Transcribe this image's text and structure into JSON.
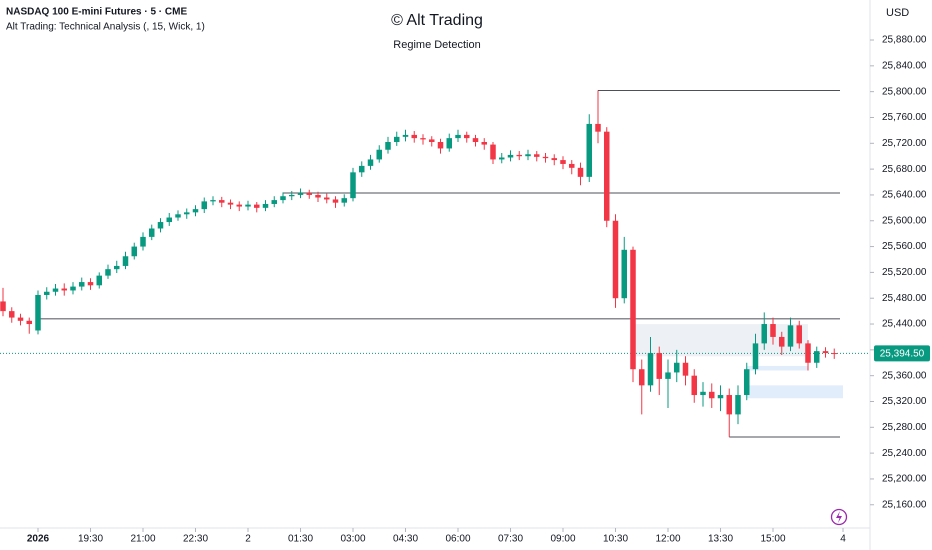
{
  "chart_data": {
    "type": "candlestick",
    "symbol_title": "NASDAQ 100 E-mini Futures · 5 · CME",
    "indicator_title": "Alt Trading: Technical Analysis (, 15, Wick, 1)",
    "title": "© Alt Trading",
    "subtitle": "Regime Detection",
    "currency": "USD",
    "up_color": "#089981",
    "down_color": "#f23645",
    "open": [
      25475,
      25460,
      25450,
      25445,
      25430,
      25485,
      25490,
      25495,
      25492,
      25498,
      25505,
      25500,
      25515,
      25525,
      25530,
      25545,
      25560,
      25575,
      25588,
      25598,
      25605,
      25610,
      25613,
      25618,
      25630,
      25632,
      25628,
      25625,
      25622,
      25625,
      25620,
      25626,
      25632,
      25638,
      25640,
      25643,
      25640,
      25636,
      25633,
      25628,
      25635,
      25675,
      25685,
      25695,
      25710,
      25722,
      25730,
      25733,
      25728,
      25726,
      25722,
      25712,
      25728,
      25733,
      25728,
      25722,
      25718,
      25695,
      25698,
      25702,
      25700,
      25703,
      25699,
      25697,
      25694,
      25688,
      25682,
      25668,
      25750,
      25738,
      25600,
      25480,
      25555,
      25370,
      25345,
      25395,
      25355,
      25365,
      25380,
      25360,
      25330,
      25335,
      25325,
      25330,
      25300,
      25330,
      25370,
      25410,
      25440,
      25420,
      25405,
      25438,
      25410,
      25380,
      25398,
      25395
    ],
    "high": [
      25496,
      25466,
      25456,
      25450,
      25492,
      25497,
      25502,
      25503,
      25505,
      25512,
      25511,
      25520,
      25532,
      25538,
      25552,
      25566,
      25582,
      25594,
      25604,
      25612,
      25616,
      25619,
      25624,
      25636,
      25638,
      25637,
      25633,
      25630,
      25631,
      25629,
      25632,
      25638,
      25644,
      25646,
      25650,
      25648,
      25645,
      25642,
      25638,
      25641,
      25682,
      25692,
      25702,
      25717,
      25730,
      25738,
      25741,
      25739,
      25734,
      25731,
      25727,
      25735,
      25741,
      25738,
      25733,
      25728,
      25722,
      25705,
      25709,
      25708,
      25710,
      25708,
      25705,
      25703,
      25700,
      25694,
      25690,
      25765,
      25802,
      25745,
      25610,
      25575,
      25560,
      25385,
      25420,
      25405,
      25385,
      25400,
      25390,
      25370,
      25350,
      25348,
      25345,
      25340,
      25345,
      25380,
      25425,
      25458,
      25450,
      25428,
      25450,
      25445,
      25415,
      25405,
      25404,
      25402
    ],
    "low": [
      25452,
      25442,
      25438,
      25425,
      25424,
      25478,
      25484,
      25484,
      25486,
      25492,
      25493,
      25495,
      25510,
      25519,
      25525,
      25540,
      25554,
      25570,
      25582,
      25592,
      25600,
      25603,
      25607,
      25612,
      25624,
      25621,
      25618,
      25615,
      25616,
      25613,
      25615,
      25621,
      25627,
      25632,
      25635,
      25634,
      25629,
      25627,
      25620,
      25622,
      25630,
      25668,
      25679,
      25690,
      25704,
      25716,
      25723,
      25721,
      25718,
      25715,
      25704,
      25707,
      25722,
      25721,
      25715,
      25710,
      25688,
      25689,
      25692,
      25694,
      25694,
      25692,
      25690,
      25686,
      25680,
      25672,
      25655,
      25660,
      25720,
      25590,
      25465,
      25472,
      25350,
      25300,
      25335,
      25330,
      25310,
      25350,
      25345,
      25318,
      25312,
      25310,
      25305,
      25265,
      25285,
      25322,
      25362,
      25400,
      25408,
      25392,
      25398,
      25402,
      25368,
      25372,
      25388,
      25386
    ],
    "close": [
      25460,
      25450,
      25445,
      25440,
      25485,
      25490,
      25495,
      25492,
      25498,
      25505,
      25500,
      25515,
      25525,
      25530,
      25545,
      25560,
      25575,
      25588,
      25598,
      25605,
      25610,
      25613,
      25618,
      25630,
      25632,
      25628,
      25625,
      25622,
      25625,
      25620,
      25626,
      25632,
      25638,
      25640,
      25643,
      25640,
      25636,
      25633,
      25628,
      25635,
      25675,
      25685,
      25695,
      25710,
      25722,
      25730,
      25733,
      25728,
      25726,
      25722,
      25712,
      25728,
      25733,
      25728,
      25722,
      25718,
      25695,
      25698,
      25702,
      25700,
      25703,
      25699,
      25697,
      25694,
      25688,
      25682,
      25668,
      25750,
      25738,
      25600,
      25480,
      25555,
      25370,
      25345,
      25395,
      25355,
      25365,
      25380,
      25360,
      25330,
      25335,
      25325,
      25330,
      25300,
      25330,
      25370,
      25410,
      25440,
      25420,
      25405,
      25438,
      25410,
      25380,
      25398,
      25395,
      25394.5
    ],
    "xticks": [
      {
        "value": 4,
        "label": "2026"
      },
      {
        "value": 10,
        "label": "19:30"
      },
      {
        "value": 16,
        "label": "21:00"
      },
      {
        "value": 22,
        "label": "22:30"
      },
      {
        "value": 28,
        "label": "2"
      },
      {
        "value": 34,
        "label": "01:30"
      },
      {
        "value": 40,
        "label": "03:00"
      },
      {
        "value": 46,
        "label": "04:30"
      },
      {
        "value": 52,
        "label": "06:00"
      },
      {
        "value": 58,
        "label": "07:30"
      },
      {
        "value": 64,
        "label": "09:00"
      },
      {
        "value": 70,
        "label": "10:30"
      },
      {
        "value": 76,
        "label": "12:00"
      },
      {
        "value": 82,
        "label": "13:30"
      },
      {
        "value": 88,
        "label": "15:00"
      },
      {
        "value": 96,
        "label": "4"
      }
    ],
    "ylim": [
      25124,
      25942
    ],
    "yticks": [
      {
        "value": 25160,
        "label": "25,160.00"
      },
      {
        "value": 25200,
        "label": "25,200.00"
      },
      {
        "value": 25240,
        "label": "25,240.00"
      },
      {
        "value": 25280,
        "label": "25,280.00"
      },
      {
        "value": 25320,
        "label": "25,320.00"
      },
      {
        "value": 25360,
        "label": "25,360.00"
      },
      {
        "value": 25400,
        "label": "25,400.00"
      },
      {
        "value": 25440,
        "label": "25,440.00"
      },
      {
        "value": 25480,
        "label": "25,480.00"
      },
      {
        "value": 25520,
        "label": "25,520.00"
      },
      {
        "value": 25560,
        "label": "25,560.00"
      },
      {
        "value": 25600,
        "label": "25,600.00"
      },
      {
        "value": 25640,
        "label": "25,640.00"
      },
      {
        "value": 25680,
        "label": "25,680.00"
      },
      {
        "value": 25720,
        "label": "25,720.00"
      },
      {
        "value": 25760,
        "label": "25,760.00"
      },
      {
        "value": 25800,
        "label": "25,800.00"
      },
      {
        "value": 25840,
        "label": "25,840.00"
      },
      {
        "value": 25880,
        "label": "25,880.00"
      }
    ],
    "levels": [
      {
        "value": 25802,
        "start": 68
      },
      {
        "value": 25643,
        "start": 32
      },
      {
        "value": 25448,
        "start": 4
      },
      {
        "value": 25265,
        "start": 83
      }
    ],
    "zones": [
      {
        "low": 25390,
        "high": 25440,
        "start": 72,
        "end": 92,
        "color": "#e8edf3"
      },
      {
        "low": 25325,
        "high": 25345,
        "start": 85,
        "end": 96,
        "color": "#dbe9fb"
      },
      {
        "low": 25368,
        "high": 25375,
        "start": 85,
        "end": 92,
        "color": "#dbe9fb"
      }
    ],
    "last_price": {
      "value": 25394.5,
      "label": "25,394.50"
    }
  }
}
